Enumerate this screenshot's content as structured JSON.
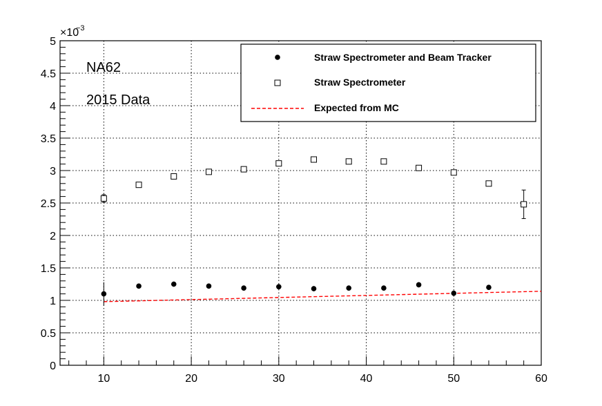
{
  "chart_data": {
    "type": "scatter",
    "title": "",
    "xlabel": "",
    "ylabel": "",
    "xlim": [
      5,
      60
    ],
    "ylim": [
      0,
      0.005
    ],
    "x_ticks": [
      10,
      20,
      30,
      40,
      50,
      60
    ],
    "y_ticks": [
      0,
      0.0005,
      0.001,
      0.0015,
      0.002,
      0.0025,
      0.003,
      0.0035,
      0.004,
      0.0045,
      0.005
    ],
    "y_tick_labels": [
      "0",
      "0.5",
      "1",
      "1.5",
      "2",
      "2.5",
      "3",
      "3.5",
      "4",
      "4.5",
      "5"
    ],
    "y_multiplier": "×10",
    "y_multiplier_exp": "−3",
    "grid": true,
    "legend_position": "top-right",
    "annotations": [
      "NA62",
      "2015 Data"
    ],
    "series": [
      {
        "name": "Straw Spectrometer and Beam Tracker",
        "marker": "filled-circle",
        "color": "#000000",
        "x": [
          10,
          14,
          18,
          22,
          26,
          30,
          34,
          38,
          42,
          46,
          50,
          54
        ],
        "y": [
          0.0011,
          0.00122,
          0.00125,
          0.00122,
          0.00119,
          0.00121,
          0.00118,
          0.00119,
          0.00119,
          0.00124,
          0.00111,
          0.0012
        ],
        "y_err": [
          0.00018,
          4e-05,
          4e-05,
          4e-05,
          4e-05,
          4e-05,
          4e-05,
          4e-05,
          4e-05,
          4e-05,
          4e-05,
          4e-05
        ]
      },
      {
        "name": "Straw Spectrometer",
        "marker": "open-square",
        "color": "#000000",
        "x": [
          10,
          14,
          18,
          22,
          26,
          30,
          34,
          38,
          42,
          46,
          50,
          54,
          58
        ],
        "y": [
          0.00257,
          0.00278,
          0.00291,
          0.00298,
          0.00302,
          0.00311,
          0.00317,
          0.00314,
          0.00314,
          0.00304,
          0.00297,
          0.0028,
          0.00248
        ],
        "y_err": [
          6e-05,
          3e-05,
          3e-05,
          3e-05,
          3e-05,
          3e-05,
          3e-05,
          3e-05,
          3e-05,
          3e-05,
          3e-05,
          3e-05,
          0.00022
        ]
      },
      {
        "name": "Expected from MC",
        "style": "dashed-line",
        "color": "#ff0000",
        "x": [
          10,
          60
        ],
        "y": [
          0.00098,
          0.00114
        ]
      }
    ]
  }
}
